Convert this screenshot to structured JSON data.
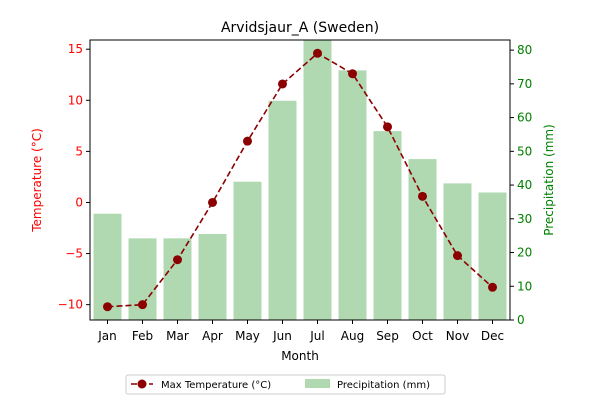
{
  "chart_data": {
    "type": "bar+line",
    "title": "Arvidsjaur_A (Sweden)",
    "xlabel": "Month",
    "categories": [
      "Jan",
      "Feb",
      "Mar",
      "Apr",
      "May",
      "Jun",
      "Jul",
      "Aug",
      "Sep",
      "Oct",
      "Nov",
      "Dec"
    ],
    "left_axis": {
      "label": "Temperature (°C)",
      "color": "#ff0000",
      "ylim": [
        -11.5,
        15.9
      ],
      "ticks": [
        -10,
        -5,
        0,
        5,
        10,
        15
      ]
    },
    "right_axis": {
      "label": "Precipitation (mm)",
      "color": "#008000",
      "ylim": [
        0,
        83
      ],
      "ticks": [
        0,
        10,
        20,
        30,
        40,
        50,
        60,
        70,
        80
      ]
    },
    "series": [
      {
        "name": "Max Temperature (°C)",
        "type": "line",
        "axis": "left",
        "color": "#8b0000",
        "marker": "circle",
        "linestyle": "dashed",
        "values": [
          -10.2,
          -10.0,
          -5.6,
          0.0,
          6.0,
          11.6,
          14.6,
          12.6,
          7.4,
          0.6,
          -5.2,
          -8.3
        ]
      },
      {
        "name": "Precipitation (mm)",
        "type": "bar",
        "axis": "right",
        "color": "#b0d9b2",
        "values": [
          31.5,
          24.2,
          24.2,
          25.5,
          41.0,
          65.0,
          83.0,
          74.0,
          56.0,
          47.7,
          40.5,
          37.8
        ]
      }
    ],
    "legend": {
      "placement": "bottom-center",
      "columns": 2
    },
    "grid": false
  }
}
